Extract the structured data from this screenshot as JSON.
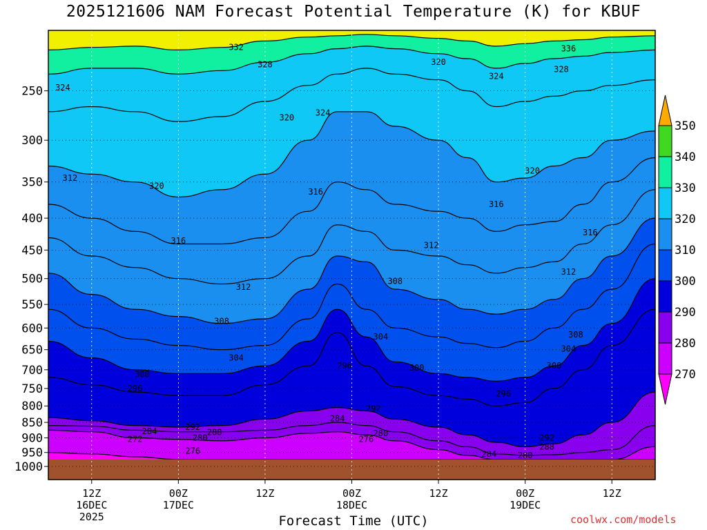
{
  "chart_data": {
    "type": "contour",
    "title": "2025121606 NAM Forecast Potential Temperature (K) for KBUF",
    "xlabel": "Forecast Time (UTC)",
    "credit": "coolwx.com/models",
    "ylabel": "",
    "y_scale": "log-pressure",
    "y_reversed": true,
    "ylim": [
      1050,
      200
    ],
    "xlim": [
      0,
      84
    ],
    "y_ticks": [
      250,
      300,
      350,
      400,
      450,
      500,
      550,
      600,
      650,
      700,
      750,
      800,
      850,
      900,
      950,
      1000
    ],
    "y_tick_labels": [
      "250",
      "300",
      "350",
      "400",
      "450",
      "500",
      "550",
      "600",
      "650",
      "700",
      "750",
      "800",
      "850",
      "900",
      "950",
      "1000"
    ],
    "x_ticks": [
      {
        "hour": 6,
        "lines": [
          "12Z",
          "16DEC",
          "2025"
        ]
      },
      {
        "hour": 18,
        "lines": [
          "00Z",
          "17DEC"
        ]
      },
      {
        "hour": 30,
        "lines": [
          "12Z"
        ]
      },
      {
        "hour": 42,
        "lines": [
          "00Z",
          "18DEC"
        ]
      },
      {
        "hour": 54,
        "lines": [
          "12Z"
        ]
      },
      {
        "hour": 66,
        "lines": [
          "00Z",
          "19DEC"
        ]
      },
      {
        "hour": 78,
        "lines": [
          "12Z"
        ]
      }
    ],
    "grid": true,
    "ground_pressure": 975,
    "colorbar": {
      "levels": [
        270,
        280,
        290,
        300,
        310,
        320,
        330,
        340,
        350
      ],
      "labels": [
        "270",
        "280",
        "290",
        "300",
        "310",
        "320",
        "330",
        "340",
        "350"
      ],
      "colors": [
        "#ff00ff",
        "#cc00ff",
        "#8800ee",
        "#0000dd",
        "#0050ee",
        "#1a8ff0",
        "#10c8f5",
        "#10f0a0",
        "#40d820",
        "#f0f000",
        "#ffaa00"
      ]
    },
    "columns": {
      "hours": [
        0,
        6,
        12,
        18,
        24,
        30,
        36,
        40,
        44,
        48,
        54,
        58,
        62,
        66,
        70,
        74,
        78,
        84
      ],
      "pressure_of_theta": [
        {
          "theta": 270,
          "p": [
            950,
            955,
            965,
            975,
            975,
            975,
            975,
            975,
            975,
            975,
            975,
            975,
            975,
            975,
            975,
            975,
            975,
            975
          ]
        },
        {
          "theta": 280,
          "p": [
            875,
            880,
            900,
            905,
            910,
            900,
            885,
            880,
            890,
            910,
            940,
            960,
            975,
            975,
            975,
            975,
            975,
            930
          ]
        },
        {
          "theta": 284,
          "p": [
            860,
            862,
            875,
            880,
            880,
            875,
            860,
            850,
            860,
            880,
            910,
            930,
            955,
            960,
            958,
            950,
            940,
            860
          ]
        },
        {
          "theta": 290,
          "p": [
            835,
            845,
            860,
            865,
            860,
            840,
            815,
            805,
            815,
            840,
            865,
            890,
            915,
            930,
            920,
            890,
            850,
            760
          ]
        },
        {
          "theta": 296,
          "p": [
            720,
            740,
            760,
            770,
            770,
            740,
            690,
            610,
            690,
            745,
            770,
            780,
            800,
            790,
            750,
            700,
            640,
            560
          ]
        },
        {
          "theta": 300,
          "p": [
            630,
            670,
            700,
            710,
            710,
            690,
            630,
            560,
            620,
            680,
            710,
            720,
            730,
            720,
            690,
            640,
            590,
            500
          ]
        },
        {
          "theta": 304,
          "p": [
            560,
            600,
            625,
            640,
            650,
            640,
            580,
            510,
            560,
            600,
            620,
            635,
            645,
            630,
            600,
            560,
            520,
            440
          ]
        },
        {
          "theta": 308,
          "p": [
            490,
            530,
            560,
            575,
            590,
            580,
            520,
            460,
            470,
            520,
            540,
            560,
            570,
            560,
            540,
            500,
            460,
            400
          ]
        },
        {
          "theta": 312,
          "p": [
            430,
            460,
            480,
            500,
            510,
            500,
            460,
            410,
            420,
            450,
            460,
            475,
            490,
            480,
            470,
            440,
            410,
            360
          ]
        },
        {
          "theta": 316,
          "p": [
            380,
            400,
            420,
            440,
            440,
            430,
            390,
            350,
            360,
            380,
            390,
            400,
            420,
            410,
            405,
            380,
            350,
            320
          ]
        },
        {
          "theta": 320,
          "p": [
            330,
            340,
            350,
            370,
            360,
            340,
            300,
            270,
            270,
            285,
            300,
            320,
            350,
            345,
            330,
            320,
            300,
            290
          ]
        },
        {
          "theta": 324,
          "p": [
            270,
            265,
            270,
            280,
            275,
            260,
            245,
            235,
            230,
            235,
            240,
            250,
            265,
            260,
            255,
            250,
            245,
            240
          ]
        },
        {
          "theta": 328,
          "p": [
            235,
            230,
            230,
            235,
            232,
            225,
            218,
            214,
            212,
            214,
            218,
            222,
            230,
            226,
            222,
            220,
            217,
            215
          ]
        },
        {
          "theta": 332,
          "p": [
            215,
            213,
            212,
            215,
            213,
            208,
            205,
            204,
            203,
            204,
            206,
            208,
            212,
            210,
            208,
            207,
            205,
            204
          ]
        }
      ]
    },
    "contour_labels": [
      {
        "value": "332",
        "hour": 26,
        "p": 213
      },
      {
        "value": "328",
        "hour": 30,
        "p": 227
      },
      {
        "value": "324",
        "hour": 2,
        "p": 247
      },
      {
        "value": "324",
        "hour": 38,
        "p": 271
      },
      {
        "value": "324",
        "hour": 62,
        "p": 237
      },
      {
        "value": "320",
        "hour": 54,
        "p": 225
      },
      {
        "value": "320",
        "hour": 33,
        "p": 276
      },
      {
        "value": "320",
        "hour": 15,
        "p": 355
      },
      {
        "value": "320",
        "hour": 67,
        "p": 336
      },
      {
        "value": "328",
        "hour": 71,
        "p": 231
      },
      {
        "value": "336",
        "hour": 72,
        "p": 214
      },
      {
        "value": "316",
        "hour": 37,
        "p": 363
      },
      {
        "value": "316",
        "hour": 62,
        "p": 380
      },
      {
        "value": "316",
        "hour": 18,
        "p": 435
      },
      {
        "value": "316",
        "hour": 75,
        "p": 422
      },
      {
        "value": "312",
        "hour": 3,
        "p": 345
      },
      {
        "value": "312",
        "hour": 53,
        "p": 442
      },
      {
        "value": "312",
        "hour": 27,
        "p": 516
      },
      {
        "value": "312",
        "hour": 72,
        "p": 488
      },
      {
        "value": "308",
        "hour": 48,
        "p": 505
      },
      {
        "value": "308",
        "hour": 24,
        "p": 585
      },
      {
        "value": "308",
        "hour": 73,
        "p": 615
      },
      {
        "value": "304",
        "hour": 46,
        "p": 620
      },
      {
        "value": "304",
        "hour": 26,
        "p": 670
      },
      {
        "value": "304",
        "hour": 72,
        "p": 648
      },
      {
        "value": "300",
        "hour": 13,
        "p": 712
      },
      {
        "value": "300",
        "hour": 51,
        "p": 695
      },
      {
        "value": "300",
        "hour": 70,
        "p": 690
      },
      {
        "value": "296",
        "hour": 41,
        "p": 690
      },
      {
        "value": "296",
        "hour": 12,
        "p": 750
      },
      {
        "value": "296",
        "hour": 63,
        "p": 765
      },
      {
        "value": "292",
        "hour": 45,
        "p": 808
      },
      {
        "value": "292",
        "hour": 20,
        "p": 865
      },
      {
        "value": "292",
        "hour": 69,
        "p": 900
      },
      {
        "value": "288",
        "hour": 23,
        "p": 882
      },
      {
        "value": "288",
        "hour": 69,
        "p": 930
      },
      {
        "value": "284",
        "hour": 40,
        "p": 838
      },
      {
        "value": "284",
        "hour": 14,
        "p": 878
      },
      {
        "value": "284",
        "hour": 61,
        "p": 955
      },
      {
        "value": "280",
        "hour": 46,
        "p": 885
      },
      {
        "value": "280",
        "hour": 21,
        "p": 900
      },
      {
        "value": "280",
        "hour": 66,
        "p": 960
      },
      {
        "value": "276",
        "hour": 44,
        "p": 905
      },
      {
        "value": "276",
        "hour": 20,
        "p": 945
      },
      {
        "value": "272",
        "hour": 12,
        "p": 905
      }
    ]
  }
}
